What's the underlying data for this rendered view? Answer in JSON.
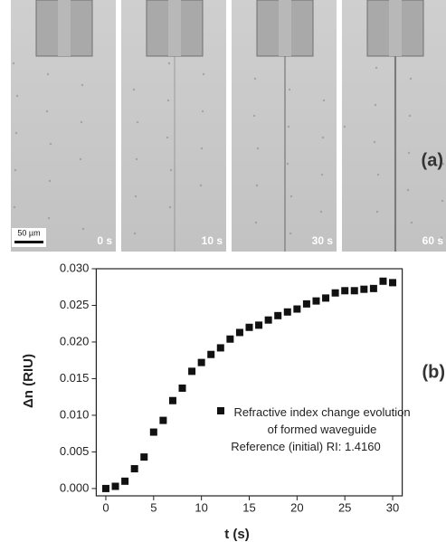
{
  "micrographs": {
    "frame_labels": [
      "0 s",
      "10 s",
      "30 s",
      "60 s"
    ],
    "scale_bar": "50 µm",
    "panel_label": "(a)"
  },
  "chart_data": {
    "type": "scatter",
    "panel_label": "(b)",
    "x_label": "t (s)",
    "y_label": "Δn (RIU)",
    "annotation": "Reference (initial) RI: 1.4160",
    "x": [
      0,
      1,
      2,
      3,
      4,
      5,
      6,
      7,
      8,
      9,
      10,
      11,
      12,
      13,
      14,
      15,
      16,
      17,
      18,
      19,
      20,
      21,
      22,
      23,
      24,
      25,
      26,
      27,
      28,
      29,
      30
    ],
    "series": [
      {
        "name": "Refractive index change evolution of formed waveguide",
        "color": "#111111",
        "values": [
          0.0,
          0.0003,
          0.001,
          0.0027,
          0.0043,
          0.0077,
          0.0093,
          0.012,
          0.0137,
          0.016,
          0.0172,
          0.0183,
          0.0192,
          0.0204,
          0.0213,
          0.022,
          0.0223,
          0.023,
          0.0236,
          0.0241,
          0.0245,
          0.0252,
          0.0256,
          0.026,
          0.0267,
          0.027,
          0.027,
          0.0272,
          0.0273,
          0.0283,
          0.0281
        ]
      }
    ],
    "xlim": [
      -1,
      31
    ],
    "xticks": [
      0,
      5,
      10,
      15,
      20,
      25,
      30
    ],
    "ylim": [
      -0.001,
      0.03
    ],
    "yticks": [
      {
        "value": 0,
        "label": "0.000"
      },
      {
        "value": 0.005,
        "label": "0.005"
      },
      {
        "value": 0.01,
        "label": "0.010"
      },
      {
        "value": 0.015,
        "label": "0.015"
      },
      {
        "value": 0.02,
        "label": "0.020"
      },
      {
        "value": 0.025,
        "label": "0.025"
      },
      {
        "value": 0.03,
        "label": "0.030"
      }
    ]
  }
}
